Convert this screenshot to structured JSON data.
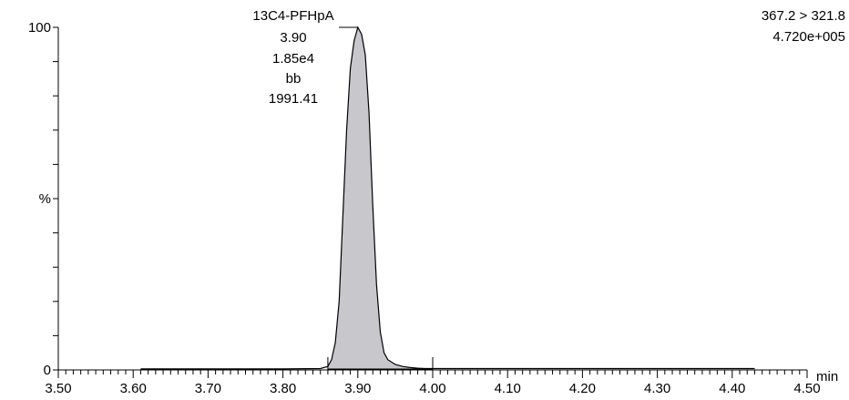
{
  "header": {
    "left_partial": "",
    "right_partial": ""
  },
  "chart_data": {
    "type": "area",
    "xlabel": "min",
    "ylabel": "%",
    "xlim": [
      3.5,
      4.5
    ],
    "ylim": [
      0,
      100
    ],
    "x_ticks": [
      "3.50",
      "3.60",
      "3.70",
      "3.80",
      "3.90",
      "4.00",
      "4.10",
      "4.20",
      "4.30",
      "4.40",
      "4.50"
    ],
    "y_ticks": [
      "0",
      "100"
    ],
    "y_mid_label": "%",
    "transition": "367.2 > 321.8",
    "intensity": "4.720e+005",
    "peak_annotation": {
      "compound": "13C4-PFHpA",
      "retention_time": "3.90",
      "height": "1.85e4",
      "integration_type": "bb",
      "area": "1991.41"
    },
    "integration_start": 3.86,
    "integration_end": 4.0,
    "trace": {
      "x": [
        3.61,
        3.7,
        3.8,
        3.85,
        3.86,
        3.865,
        3.87,
        3.875,
        3.88,
        3.885,
        3.89,
        3.895,
        3.9,
        3.905,
        3.91,
        3.915,
        3.92,
        3.925,
        3.93,
        3.935,
        3.94,
        3.95,
        3.96,
        3.97,
        3.98,
        3.99,
        4.0,
        4.05,
        4.1,
        4.2,
        4.3,
        4.4,
        4.43
      ],
      "y": [
        0.3,
        0.3,
        0.3,
        0.4,
        1.0,
        3,
        8,
        20,
        45,
        70,
        88,
        96,
        100,
        98,
        92,
        75,
        48,
        25,
        11,
        5,
        3,
        1.6,
        1.0,
        0.7,
        0.5,
        0.4,
        0.4,
        0.4,
        0.4,
        0.4,
        0.4,
        0.4,
        0.4
      ]
    }
  }
}
